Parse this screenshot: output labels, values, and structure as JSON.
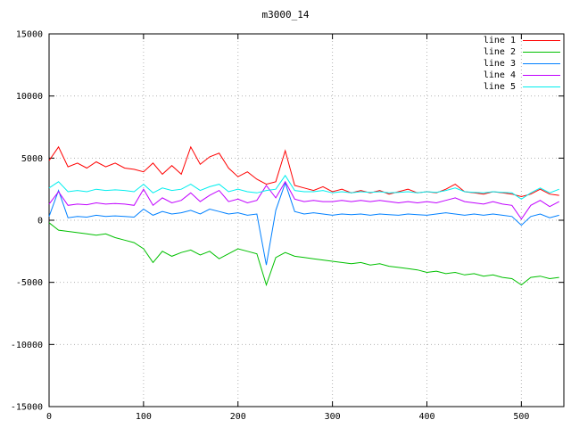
{
  "chart_data": {
    "type": "line",
    "title": "m3000_14",
    "xlabel": "",
    "ylabel": "",
    "xlim": [
      0,
      545
    ],
    "ylim": [
      -15000,
      15000
    ],
    "x_ticks": [
      0,
      100,
      200,
      300,
      400,
      500
    ],
    "y_ticks": [
      -15000,
      -10000,
      -5000,
      0,
      5000,
      10000,
      15000
    ],
    "grid": true,
    "legend_position": "top-right",
    "x": [
      0,
      10,
      20,
      30,
      40,
      50,
      60,
      70,
      80,
      90,
      100,
      110,
      120,
      130,
      140,
      150,
      160,
      170,
      180,
      190,
      200,
      210,
      220,
      230,
      240,
      250,
      260,
      270,
      280,
      290,
      300,
      310,
      320,
      330,
      340,
      350,
      360,
      370,
      380,
      390,
      400,
      410,
      420,
      430,
      440,
      450,
      460,
      470,
      480,
      490,
      500,
      510,
      520,
      530,
      540
    ],
    "series": [
      {
        "name": "line 1",
        "color": "#ff0000",
        "values": [
          4800,
          5900,
          4300,
          4600,
          4200,
          4700,
          4300,
          4600,
          4200,
          4100,
          3900,
          4600,
          3700,
          4400,
          3700,
          5900,
          4500,
          5100,
          5400,
          4200,
          3500,
          3900,
          3300,
          2900,
          3100,
          5600,
          2800,
          2600,
          2400,
          2700,
          2300,
          2500,
          2200,
          2400,
          2200,
          2400,
          2100,
          2300,
          2500,
          2200,
          2300,
          2200,
          2500,
          2900,
          2300,
          2200,
          2100,
          2300,
          2200,
          2100,
          1900,
          2100,
          2500,
          2100,
          2000
        ]
      },
      {
        "name": "line 2",
        "color": "#00c000",
        "values": [
          -200,
          -800,
          -900,
          -1000,
          -1100,
          -1200,
          -1100,
          -1400,
          -1600,
          -1800,
          -2300,
          -3400,
          -2500,
          -2900,
          -2600,
          -2400,
          -2800,
          -2500,
          -3100,
          -2700,
          -2300,
          -2500,
          -2700,
          -5200,
          -3000,
          -2600,
          -2900,
          -3000,
          -3100,
          -3200,
          -3300,
          -3400,
          -3500,
          -3400,
          -3600,
          -3500,
          -3700,
          -3800,
          -3900,
          -4000,
          -4200,
          -4100,
          -4300,
          -4200,
          -4400,
          -4300,
          -4500,
          -4400,
          -4600,
          -4700,
          -5200,
          -4600,
          -4500,
          -4700,
          -4600
        ]
      },
      {
        "name": "line 3",
        "color": "#0080ff",
        "values": [
          300,
          2400,
          200,
          300,
          250,
          400,
          300,
          350,
          300,
          250,
          900,
          400,
          700,
          500,
          600,
          800,
          500,
          900,
          700,
          500,
          600,
          400,
          500,
          -3600,
          800,
          3000,
          700,
          500,
          600,
          500,
          400,
          500,
          450,
          500,
          400,
          500,
          450,
          400,
          500,
          450,
          400,
          500,
          600,
          500,
          400,
          500,
          400,
          500,
          400,
          300,
          -400,
          300,
          500,
          200,
          400
        ]
      },
      {
        "name": "line 4",
        "color": "#c000ff",
        "values": [
          1300,
          2300,
          1200,
          1300,
          1250,
          1400,
          1300,
          1350,
          1300,
          1200,
          2500,
          1200,
          1800,
          1400,
          1600,
          2200,
          1500,
          2000,
          2400,
          1500,
          1700,
          1400,
          1600,
          2800,
          1800,
          3100,
          1700,
          1500,
          1600,
          1500,
          1500,
          1600,
          1500,
          1600,
          1500,
          1600,
          1500,
          1400,
          1500,
          1400,
          1500,
          1400,
          1600,
          1800,
          1500,
          1400,
          1300,
          1500,
          1300,
          1200,
          100,
          1200,
          1600,
          1100,
          1500
        ]
      },
      {
        "name": "line 5",
        "color": "#00eeee",
        "values": [
          2600,
          3100,
          2300,
          2400,
          2300,
          2500,
          2400,
          2450,
          2400,
          2300,
          2900,
          2200,
          2600,
          2400,
          2500,
          2900,
          2400,
          2700,
          2900,
          2300,
          2500,
          2300,
          2200,
          2400,
          2500,
          3600,
          2400,
          2300,
          2300,
          2400,
          2200,
          2300,
          2200,
          2300,
          2250,
          2300,
          2200,
          2250,
          2300,
          2200,
          2300,
          2250,
          2400,
          2600,
          2300,
          2250,
          2200,
          2300,
          2250,
          2200,
          1700,
          2200,
          2600,
          2200,
          2500
        ]
      }
    ]
  }
}
